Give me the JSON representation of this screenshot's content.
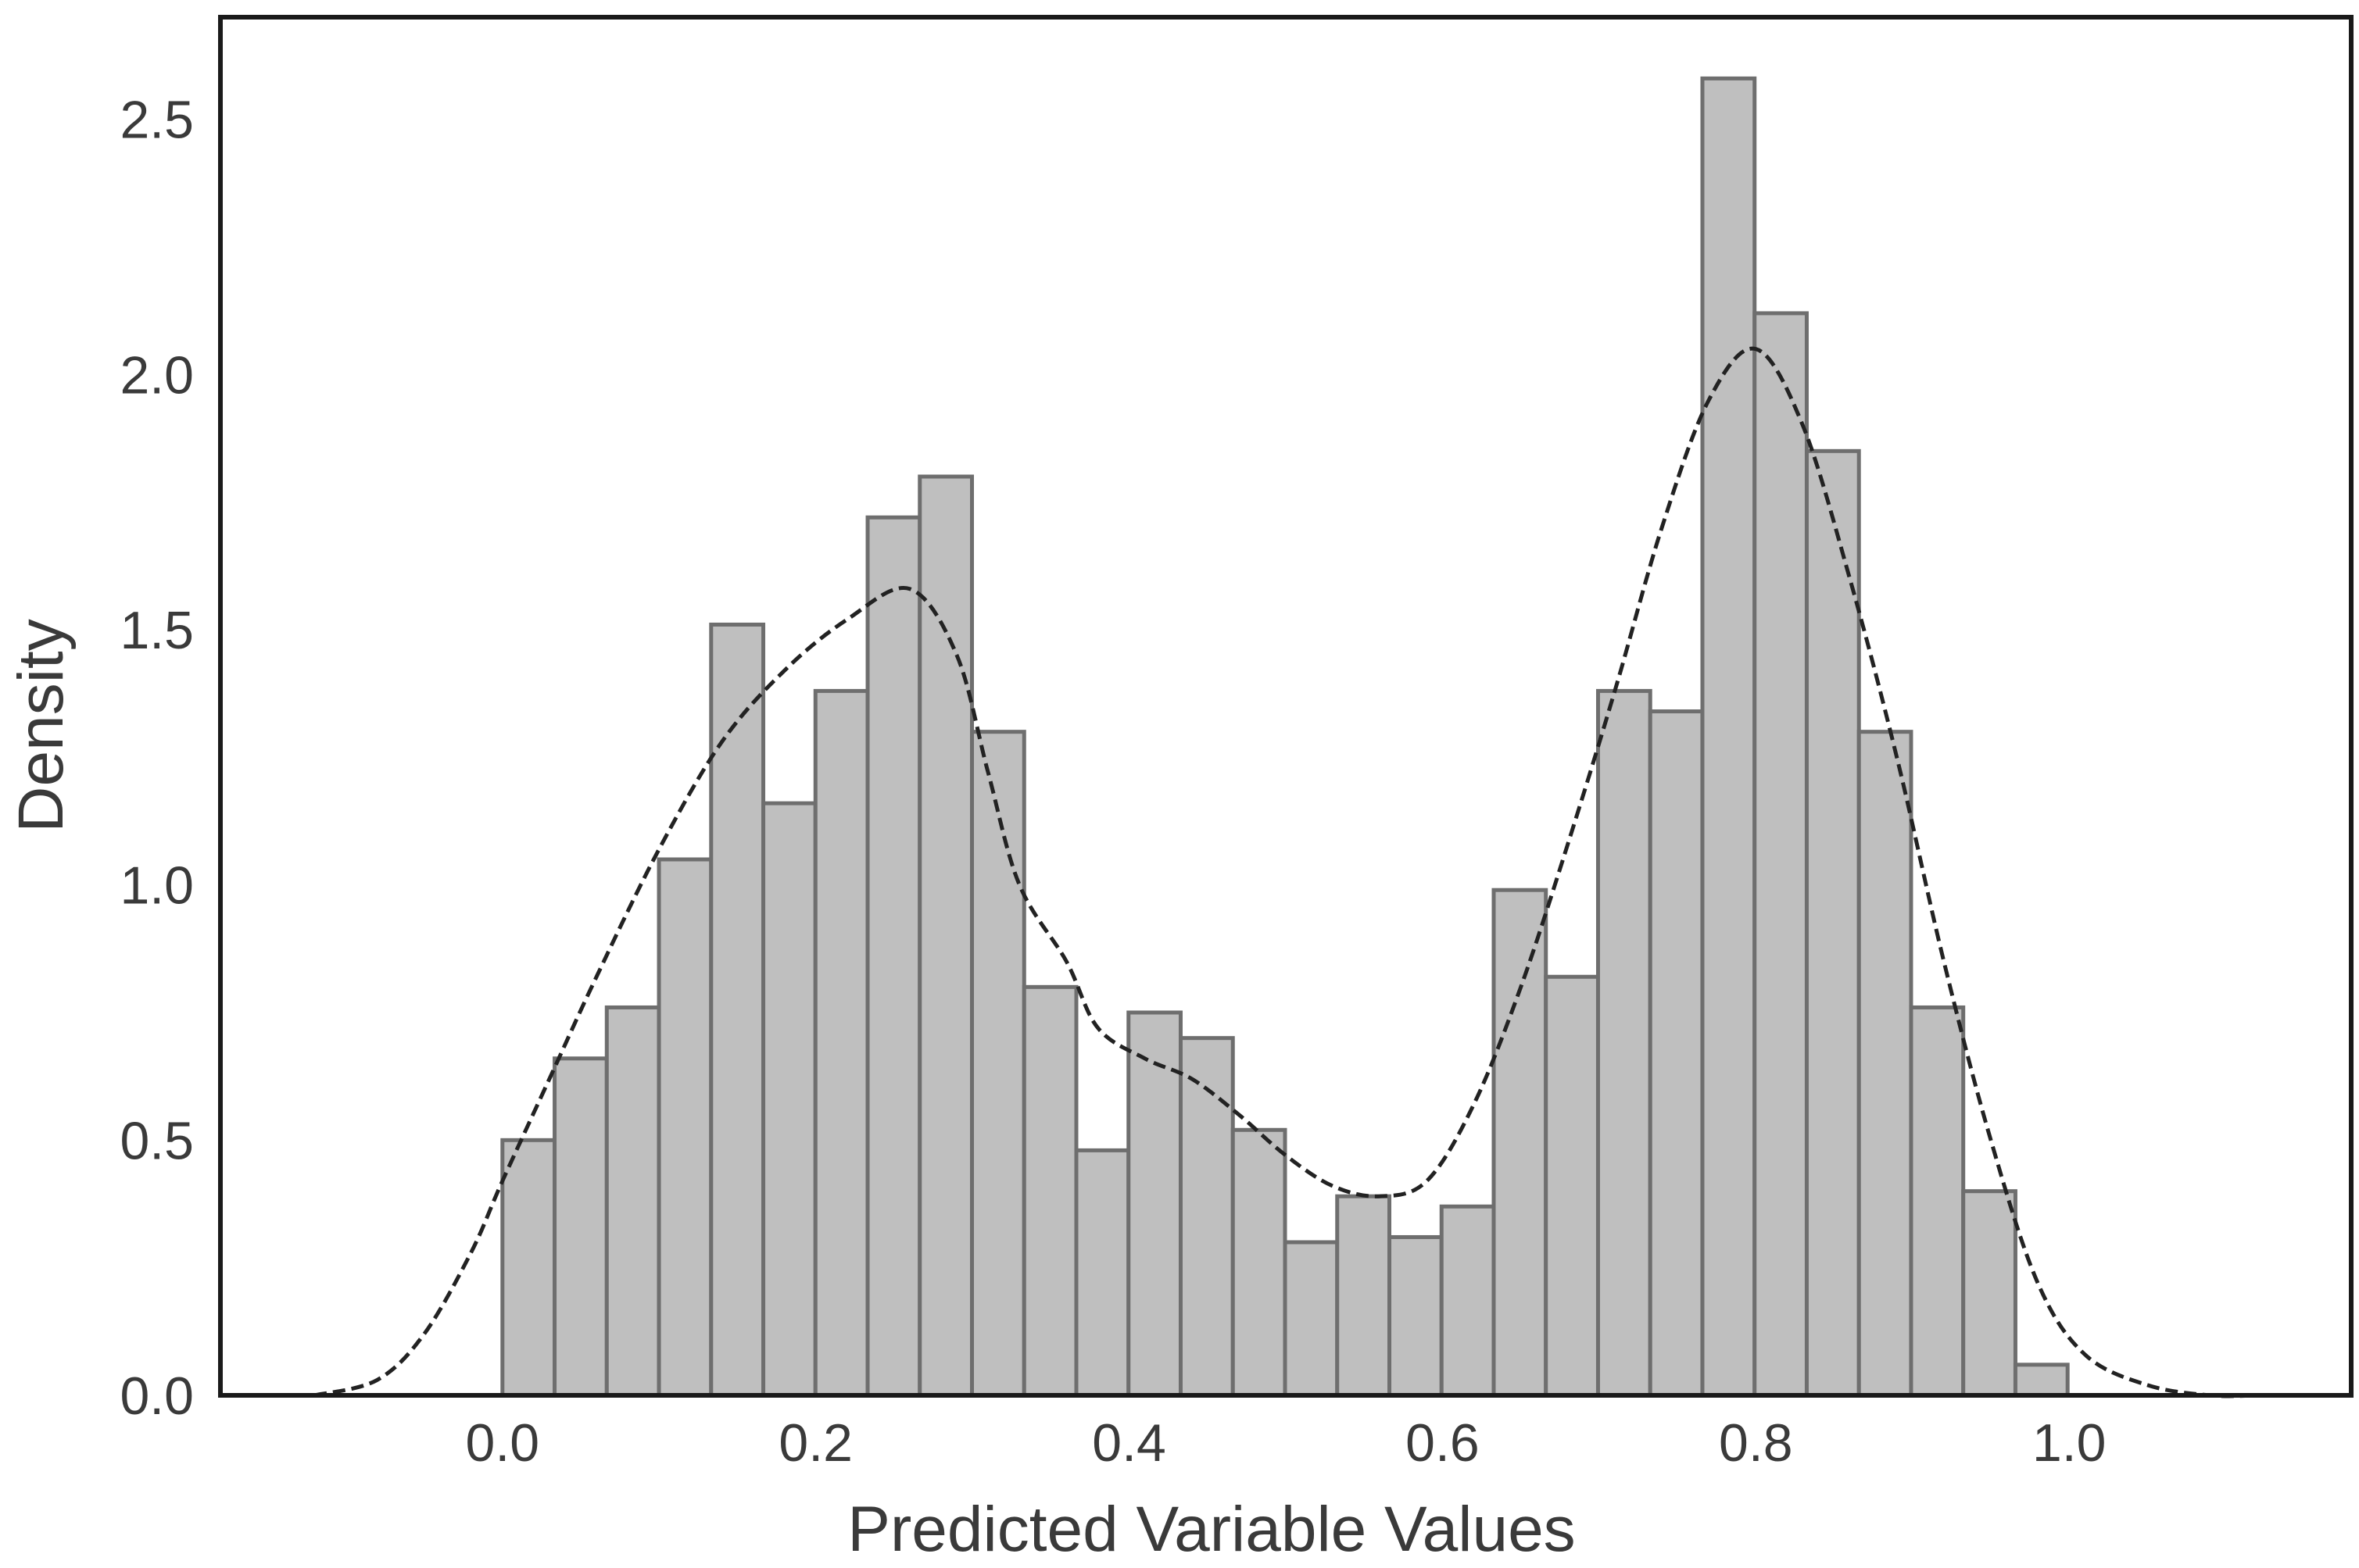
{
  "chart_data": {
    "type": "bar",
    "xlabel": "Predicted Variable Values",
    "ylabel": "Density",
    "xlim": [
      -0.18,
      1.18
    ],
    "ylim": [
      0,
      2.7
    ],
    "x_ticks": [
      "0.0",
      "0.2",
      "0.4",
      "0.6",
      "0.8",
      "1.0"
    ],
    "y_ticks": [
      "0.0",
      "0.5",
      "1.0",
      "1.5",
      "2.0",
      "2.5"
    ],
    "grid": false,
    "histogram": {
      "bin_start": 0.0,
      "bin_width": 0.0333,
      "values": [
        0.5,
        0.66,
        0.76,
        1.05,
        1.51,
        1.16,
        1.38,
        1.72,
        1.8,
        1.3,
        0.8,
        0.48,
        0.75,
        0.7,
        0.52,
        0.3,
        0.39,
        0.31,
        0.37,
        0.99,
        0.82,
        1.38,
        1.34,
        2.58,
        2.12,
        1.85,
        1.3,
        0.76,
        0.4,
        0.06
      ]
    },
    "kde": {
      "x": [
        -0.12,
        -0.08,
        -0.05,
        -0.02,
        0.0,
        0.03,
        0.06,
        0.1,
        0.14,
        0.18,
        0.22,
        0.26,
        0.29,
        0.31,
        0.33,
        0.36,
        0.38,
        0.41,
        0.44,
        0.47,
        0.5,
        0.53,
        0.56,
        0.59,
        0.62,
        0.65,
        0.68,
        0.71,
        0.74,
        0.77,
        0.8,
        0.83,
        0.86,
        0.89,
        0.92,
        0.95,
        0.98,
        1.01,
        1.05,
        1.09,
        1.12
      ],
      "y": [
        0.0,
        0.03,
        0.12,
        0.28,
        0.42,
        0.62,
        0.82,
        1.07,
        1.28,
        1.42,
        1.52,
        1.58,
        1.45,
        1.22,
        1.0,
        0.85,
        0.72,
        0.66,
        0.62,
        0.55,
        0.47,
        0.41,
        0.39,
        0.42,
        0.57,
        0.8,
        1.08,
        1.38,
        1.7,
        1.95,
        2.05,
        1.9,
        1.6,
        1.25,
        0.85,
        0.5,
        0.22,
        0.08,
        0.02,
        0.0,
        0.0
      ]
    },
    "colors": {
      "bar_fill": "#bfbfbf",
      "bar_edge": "#6e6e6e",
      "kde_line": "#222222",
      "axis_frame": "#1a1a1a",
      "text": "#3a3a3a"
    }
  }
}
